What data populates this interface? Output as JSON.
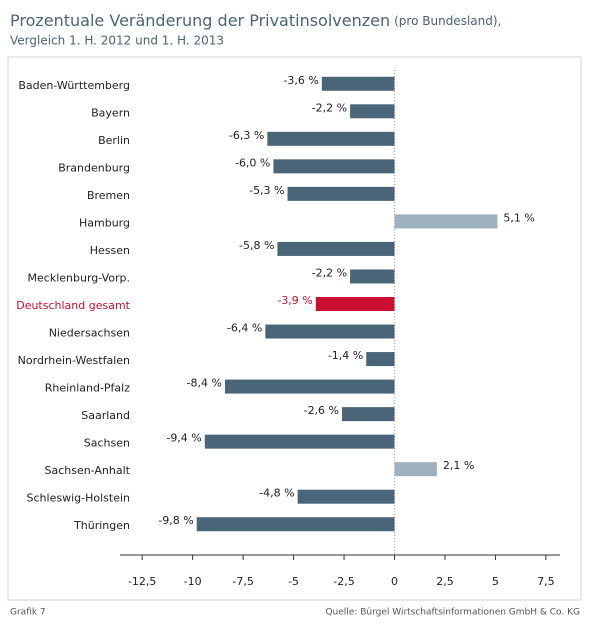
{
  "chart_data": {
    "type": "barh",
    "title": "Prozentuale Veränderung der Privatinsolvenzen",
    "title_note": "(pro Bundesland),",
    "subtitle": "Vergleich 1. H. 2012 und 1. H. 2013",
    "footer_left": "Grafik 7",
    "source": "Quelle: Bürgel Wirtschaftsinformationen GmbH & Co. KG",
    "categories": [
      "Baden-Württemberg",
      "Bayern",
      "Berlin",
      "Brandenburg",
      "Bremen",
      "Hamburg",
      "Hessen",
      "Mecklenburg-Vorp.",
      "Deutschland gesamt",
      "Niedersachsen",
      "Nordrhein-Westfalen",
      "Rheinland-Pfalz",
      "Saarland",
      "Sachsen",
      "Sachsen-Anhalt",
      "Schleswig-Holstein",
      "Thüringen"
    ],
    "values": [
      -3.6,
      -2.2,
      -6.3,
      -6.0,
      -5.3,
      5.1,
      -5.8,
      -2.2,
      -3.9,
      -6.4,
      -1.4,
      -8.4,
      -2.6,
      -9.4,
      2.1,
      -4.8,
      -9.8
    ],
    "value_labels": [
      "-3,6 %",
      "-2,2 %",
      "-6,3 %",
      "-6,0 %",
      "-5,3 %",
      "5,1 %",
      "-5,8 %",
      "-2,2 %",
      "-3,9 %",
      "-6,4 %",
      "-1,4 %",
      "-8,4 %",
      "-2,6 %",
      "-9,4 %",
      "2,1 %",
      "-4,8 %",
      "-9,8 %"
    ],
    "colors": [
      "#4a6478",
      "#4a6478",
      "#4a6478",
      "#4a6478",
      "#4a6478",
      "#9fb1c1",
      "#4a6478",
      "#4a6478",
      "#c8102e",
      "#4a6478",
      "#4a6478",
      "#4a6478",
      "#4a6478",
      "#4a6478",
      "#9fb1c1",
      "#4a6478",
      "#4a6478"
    ],
    "category_colors": [
      "#222",
      "#222",
      "#222",
      "#222",
      "#222",
      "#222",
      "#222",
      "#222",
      "#c8102e",
      "#222",
      "#222",
      "#222",
      "#222",
      "#222",
      "#222",
      "#222",
      "#222"
    ],
    "xlim": [
      -13.6,
      8.2
    ],
    "xticks": [
      {
        "value": -12.5,
        "label": "-12,5"
      },
      -10,
      {
        "value": -7.5,
        "label": "-7,5"
      },
      -5,
      {
        "value": -2.5,
        "label": "-2,5"
      },
      0,
      {
        "value": 2.5,
        "label": "2,5"
      },
      5,
      {
        "value": 7.5,
        "label": "7,5"
      }
    ]
  }
}
